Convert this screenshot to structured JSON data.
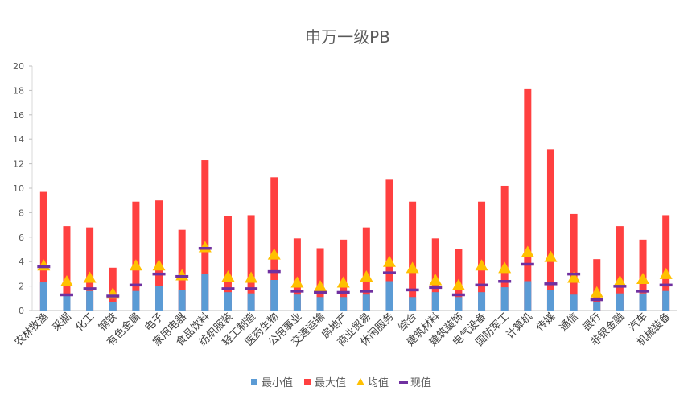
{
  "chart_data": {
    "type": "bar",
    "title": "申万一级PB",
    "xlabel": "",
    "ylabel": "",
    "ylim": [
      0,
      20
    ],
    "yticks": [
      0,
      2,
      4,
      6,
      8,
      10,
      12,
      14,
      16,
      18,
      20
    ],
    "grid": false,
    "legend_position": "bottom",
    "categories": [
      "农林牧渔",
      "采掘",
      "化工",
      "钢铁",
      "有色金属",
      "电子",
      "家用电器",
      "食品饮料",
      "纺织服装",
      "轻工制造",
      "医药生物",
      "公用事业",
      "交通运输",
      "房地产",
      "商业贸易",
      "休闲服务",
      "综合",
      "建筑材料",
      "建筑装饰",
      "电气设备",
      "国防军工",
      "计算机",
      "传媒",
      "通信",
      "银行",
      "非银金融",
      "汽车",
      "机械装备"
    ],
    "series": [
      {
        "name": "最小值",
        "kind": "bar",
        "color": "#5B9BD5",
        "values": [
          2.3,
          1.2,
          1.6,
          0.7,
          1.6,
          2.0,
          1.7,
          3.0,
          1.5,
          1.4,
          2.5,
          1.3,
          1.1,
          1.1,
          1.3,
          2.4,
          1.1,
          1.5,
          1.1,
          1.5,
          1.9,
          2.4,
          1.7,
          1.3,
          0.7,
          1.4,
          1.4,
          1.6
        ]
      },
      {
        "name": "最大值",
        "kind": "bar",
        "color": "#FF4040",
        "values": [
          9.7,
          6.9,
          6.8,
          3.5,
          8.9,
          9.0,
          6.6,
          12.3,
          7.7,
          7.8,
          10.9,
          5.9,
          5.1,
          5.8,
          6.8,
          10.7,
          8.9,
          5.9,
          5.0,
          8.9,
          10.2,
          18.1,
          13.2,
          7.9,
          4.2,
          6.9,
          5.8,
          7.8
        ]
      },
      {
        "name": "均值",
        "kind": "triangle",
        "color": "#FFC000",
        "values": [
          3.6,
          2.3,
          2.6,
          1.3,
          3.6,
          3.6,
          2.8,
          5.1,
          2.7,
          2.6,
          4.5,
          2.2,
          1.9,
          2.2,
          2.7,
          3.9,
          3.4,
          2.4,
          2.0,
          3.6,
          3.4,
          4.7,
          4.3,
          2.6,
          1.4,
          2.3,
          2.5,
          2.9
        ]
      },
      {
        "name": "现值",
        "kind": "dash",
        "color": "#7030A0",
        "values": [
          3.6,
          1.3,
          1.8,
          1.2,
          2.1,
          3.0,
          2.8,
          5.1,
          1.8,
          1.8,
          3.2,
          1.6,
          1.5,
          1.5,
          1.6,
          3.1,
          1.7,
          1.9,
          1.3,
          2.1,
          2.4,
          3.8,
          2.2,
          3.0,
          0.9,
          2.0,
          1.6,
          2.1
        ]
      }
    ]
  }
}
